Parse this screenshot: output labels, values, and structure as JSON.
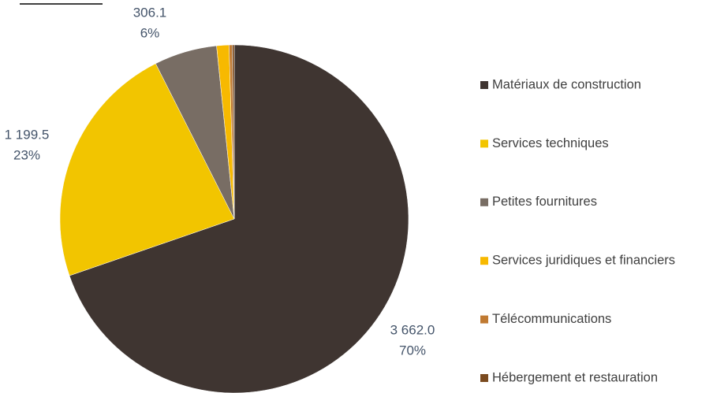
{
  "chart_data": {
    "type": "pie",
    "categories": [
      "Matériaux de construction",
      "Services techniques",
      "Petites fournitures",
      "Services juridiques et financiers",
      "Télécommunications",
      "Hébergement et restauration"
    ],
    "values": [
      3662.0,
      1199.5,
      306.1,
      60,
      15,
      10
    ],
    "value_labels": [
      "3 662.0",
      "1 199.5",
      "306.1",
      null,
      null,
      null
    ],
    "percent_labels": [
      "70%",
      "23%",
      "6%",
      null,
      null,
      null
    ],
    "colors": [
      "#3f3531",
      "#f2c500",
      "#786d64",
      "#f7b900",
      "#c07a32",
      "#7a4a1f"
    ],
    "legend": "right"
  }
}
